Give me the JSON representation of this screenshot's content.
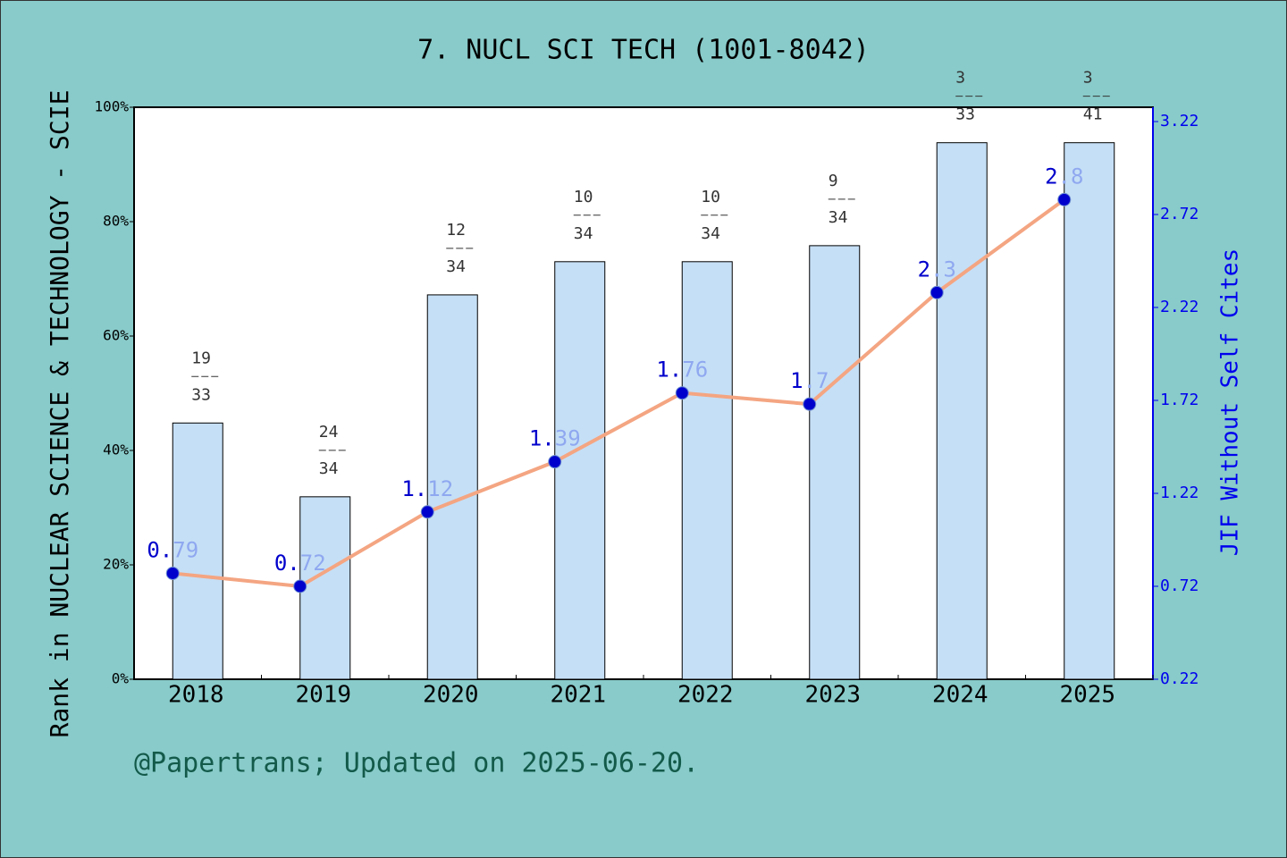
{
  "chart_data": {
    "type": "bar-line",
    "title": "7. NUCL SCI TECH (1001-8042)",
    "ylabel": "Rank in NUCLEAR SCIENCE & TECHNOLOGY - SCIE",
    "y2label": "JIF Without Self Cites",
    "footnote": "@Papertrans; Updated on 2025-06-20.",
    "categories": [
      "2018",
      "2019",
      "2020",
      "2021",
      "2022",
      "2023",
      "2024",
      "2025"
    ],
    "ylim": [
      0,
      100
    ],
    "yticks": [
      {
        "value": 0,
        "label": "0%"
      },
      {
        "value": 20,
        "label": "20%"
      },
      {
        "value": 40,
        "label": "40%"
      },
      {
        "value": 60,
        "label": "60%"
      },
      {
        "value": 80,
        "label": "80%"
      },
      {
        "value": 100,
        "label": "100%"
      }
    ],
    "y2lim": [
      0.22,
      3.297
    ],
    "y2ticks": [
      0.22,
      0.72,
      1.22,
      1.72,
      2.22,
      2.72,
      3.22
    ],
    "series": [
      {
        "name": "Rank",
        "type": "bar",
        "color": "#c5dff6",
        "values": [
          44.8,
          31.9,
          67.2,
          73.0,
          73.0,
          75.8,
          93.8,
          93.8
        ],
        "ranks": [
          19,
          24,
          12,
          10,
          10,
          9,
          3,
          3
        ],
        "totals": [
          33,
          34,
          34,
          34,
          34,
          34,
          33,
          41
        ]
      },
      {
        "name": "JIF Without Self Cites",
        "type": "line",
        "axis": "y2",
        "color": "#f4a582",
        "marker_color": "#0000cc",
        "values": [
          0.79,
          0.72,
          1.12,
          1.39,
          1.76,
          1.7,
          2.3,
          2.8
        ]
      }
    ]
  }
}
